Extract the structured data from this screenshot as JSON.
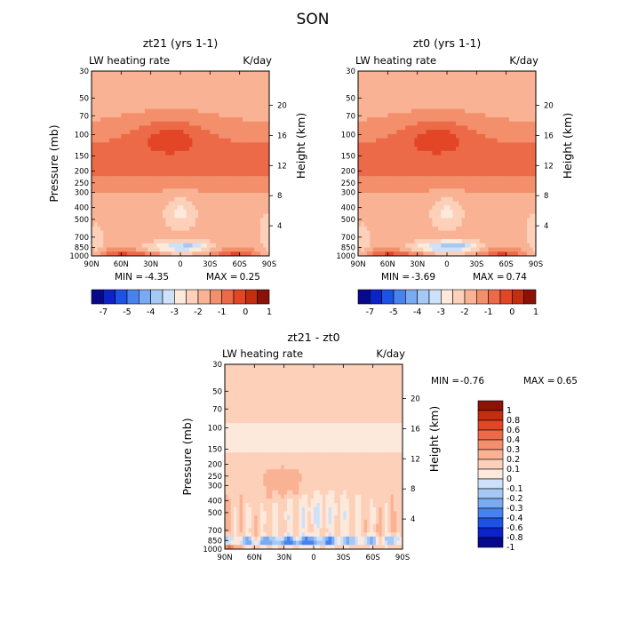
{
  "figure": {
    "title": "SON"
  },
  "chart_data": [
    {
      "type": "heatmap",
      "title": "zt21 (yrs 1-1)",
      "left_subtitle": "LW heating rate",
      "right_subtitle": "K/day",
      "xlabel": "",
      "ylabel": "Pressure (mb)",
      "y2label": "Height (km)",
      "x_ticks": [
        "90N",
        "60N",
        "30N",
        "0",
        "30S",
        "60S",
        "90S"
      ],
      "xlim": [
        90,
        -90
      ],
      "y_ticks": [
        "30",
        "50",
        "70",
        "100",
        "150",
        "200",
        "250",
        "300",
        "400",
        "500",
        "700",
        "850",
        "1000"
      ],
      "ylim": [
        1000,
        30
      ],
      "y2_ticks": [
        "20",
        "16",
        "12",
        "8",
        "4"
      ],
      "min_label": "MIN =",
      "min": "-4.35",
      "max_label": "MAX =",
      "max": "0.25",
      "colorbar_labels": [
        "-7",
        "-5",
        "-4",
        "-3",
        "-2",
        "-1",
        "0",
        "1"
      ]
    },
    {
      "type": "heatmap",
      "title": "zt0 (yrs 1-1)",
      "left_subtitle": "LW heating rate",
      "right_subtitle": "K/day",
      "xlabel": "",
      "ylabel": "",
      "y2label": "Height (km)",
      "x_ticks": [
        "90N",
        "60N",
        "30N",
        "0",
        "30S",
        "60S",
        "90S"
      ],
      "xlim": [
        90,
        -90
      ],
      "y_ticks": [
        "30",
        "50",
        "70",
        "100",
        "150",
        "200",
        "250",
        "300",
        "400",
        "500",
        "700",
        "850",
        "1000"
      ],
      "ylim": [
        1000,
        30
      ],
      "y2_ticks": [
        "20",
        "16",
        "12",
        "8",
        "4"
      ],
      "min_label": "MIN =",
      "min": "-3.69",
      "max_label": "MAX =",
      "max": "0.74",
      "colorbar_labels": [
        "-7",
        "-5",
        "-4",
        "-3",
        "-2",
        "-1",
        "0",
        "1"
      ]
    },
    {
      "type": "heatmap",
      "title": "zt21 - zt0",
      "left_subtitle": "LW heating rate",
      "right_subtitle": "K/day",
      "xlabel": "",
      "ylabel": "Pressure (mb)",
      "y2label": "Height (km)",
      "x_ticks": [
        "90N",
        "60N",
        "30N",
        "0",
        "30S",
        "60S",
        "90S"
      ],
      "xlim": [
        90,
        -90
      ],
      "y_ticks": [
        "30",
        "50",
        "70",
        "100",
        "150",
        "200",
        "250",
        "300",
        "400",
        "500",
        "700",
        "850",
        "1000"
      ],
      "ylim": [
        1000,
        30
      ],
      "y2_ticks": [
        "20",
        "16",
        "12",
        "8",
        "4"
      ],
      "min_label": "MIN =",
      "min": "-0.76",
      "max_label": "MAX =",
      "max": "0.65",
      "colorbar_labels": [
        "1",
        "0.8",
        "0.6",
        "0.4",
        "0.3",
        "0.2",
        "0.1",
        "0",
        "-0.1",
        "-0.2",
        "-0.3",
        "-0.4",
        "-0.6",
        "-0.8",
        "-1"
      ]
    }
  ],
  "colors": {
    "abs_scale": [
      "#08088c",
      "#0b23c8",
      "#1c52e6",
      "#4782ef",
      "#7aaaf1",
      "#a6c8f5",
      "#cde1f9",
      "#fde9dc",
      "#fcd0b9",
      "#f9b394",
      "#f48f6c",
      "#ec6a47",
      "#e24626",
      "#c42e10",
      "#8c1106"
    ],
    "diff_scale": [
      "#8c1106",
      "#c42e10",
      "#e24626",
      "#ec6a47",
      "#f48f6c",
      "#f9b394",
      "#fcd0b9",
      "#fde9dc",
      "#cde1f9",
      "#a6c8f5",
      "#7aaaf1",
      "#4782ef",
      "#1c52e6",
      "#0b23c8",
      "#08088c"
    ]
  }
}
